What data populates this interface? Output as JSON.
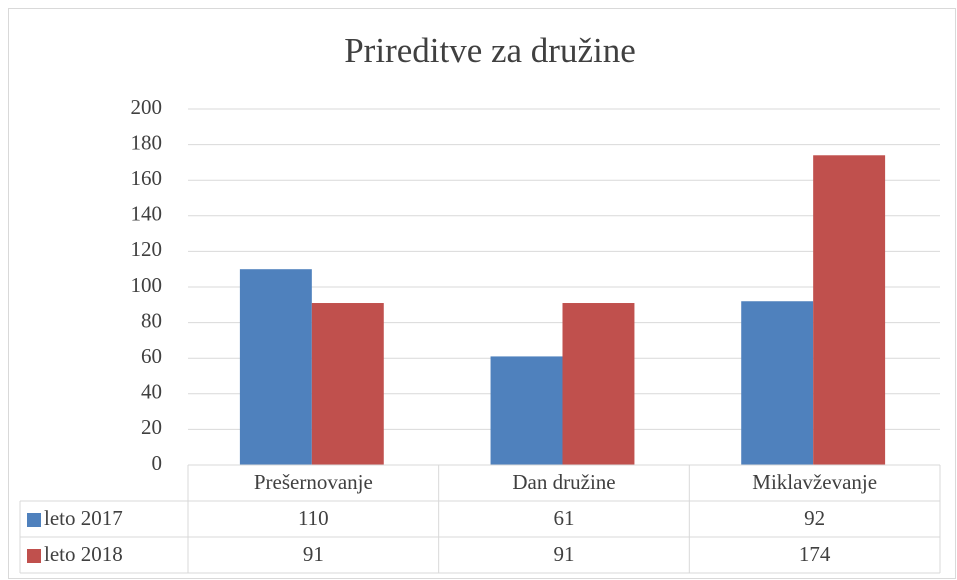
{
  "chart_data": {
    "type": "bar",
    "title": "Prireditve za družine",
    "categories": [
      "Prešernovanje",
      "Dan družine",
      "Miklavževanje"
    ],
    "series": [
      {
        "name": "leto 2017",
        "color": "#4f81bd",
        "values": [
          110,
          61,
          92
        ]
      },
      {
        "name": "leto 2018",
        "color": "#c0504d",
        "values": [
          91,
          91,
          174
        ]
      }
    ],
    "ylim": [
      0,
      200
    ],
    "yticks": [
      0,
      20,
      40,
      60,
      80,
      100,
      120,
      140,
      160,
      180,
      200
    ],
    "grid": true,
    "data_table": true
  }
}
